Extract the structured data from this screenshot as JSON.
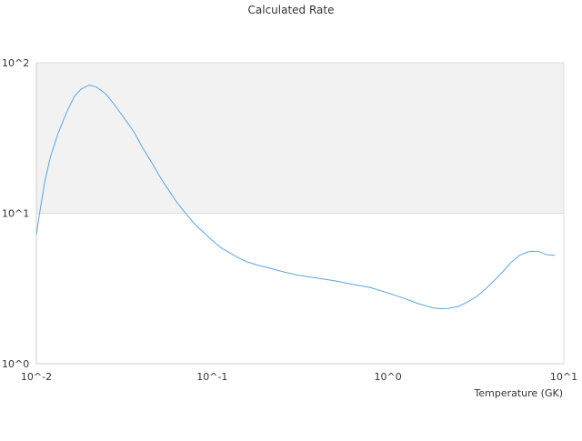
{
  "chart_data": {
    "type": "line",
    "title": "Calculated Rate",
    "xlabel": "Temperature (GK)",
    "ylabel": "",
    "xscale": "log",
    "yscale": "log",
    "xlim": [
      0.01,
      10
    ],
    "ylim": [
      1,
      100
    ],
    "x_tick_labels": [
      "10^-2",
      "10^-1",
      "10^0",
      "10^1"
    ],
    "y_tick_labels": [
      "10^0",
      "10^1",
      "10^2"
    ],
    "grid": true,
    "shaded_band_y": [
      10,
      100
    ],
    "colors": {
      "line": "#5aa5e6",
      "band": "#f2f2f2",
      "grid": "#dddddd"
    },
    "series": [
      {
        "x": [
          0.01,
          0.0105,
          0.0112,
          0.012,
          0.0133,
          0.015,
          0.0165,
          0.018,
          0.02,
          0.022,
          0.025,
          0.028,
          0.032,
          0.036,
          0.04,
          0.045,
          0.05,
          0.056,
          0.063,
          0.071,
          0.08,
          0.09,
          0.1,
          0.112,
          0.126,
          0.141,
          0.158,
          0.178,
          0.2,
          0.25,
          0.3,
          0.4,
          0.5,
          0.6,
          0.7,
          0.8,
          1.0,
          1.2,
          1.5,
          1.8,
          2.0,
          2.2,
          2.5,
          2.8,
          3.2,
          3.6,
          4.0,
          4.5,
          5.0,
          5.6,
          6.3,
          7.1,
          8.0,
          8.9
        ],
        "y": [
          7.2,
          10.5,
          16.5,
          23.5,
          34.0,
          48.0,
          60.0,
          67.0,
          71.0,
          69.0,
          61.5,
          52.0,
          42.0,
          34.5,
          27.5,
          22.0,
          17.8,
          14.5,
          11.8,
          9.9,
          8.4,
          7.4,
          6.6,
          5.9,
          5.45,
          5.05,
          4.75,
          4.55,
          4.4,
          4.1,
          3.9,
          3.7,
          3.55,
          3.4,
          3.3,
          3.2,
          2.95,
          2.75,
          2.5,
          2.35,
          2.32,
          2.33,
          2.4,
          2.55,
          2.8,
          3.15,
          3.55,
          4.1,
          4.7,
          5.25,
          5.55,
          5.6,
          5.3,
          5.25
        ]
      }
    ]
  }
}
